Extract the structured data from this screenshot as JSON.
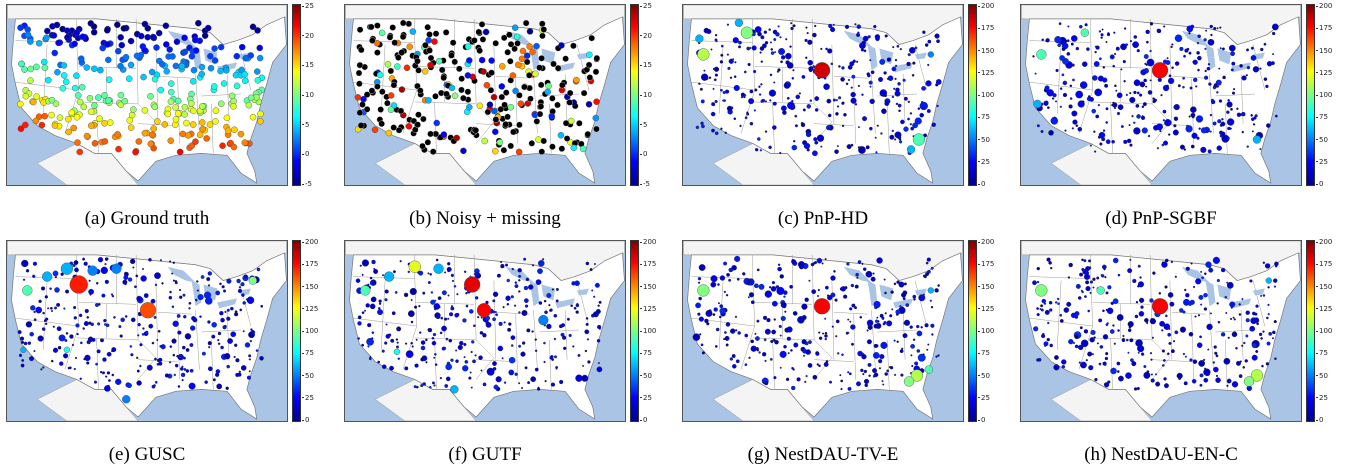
{
  "figure": {
    "panels": [
      {
        "id": "a",
        "caption": "(a) Ground truth",
        "ticks": [
          "25",
          "20",
          "15",
          "10",
          "5",
          "0",
          "-5"
        ],
        "style": "gt"
      },
      {
        "id": "b",
        "caption": "(b) Noisy + missing",
        "ticks": [
          "25",
          "20",
          "15",
          "10",
          "5",
          "0",
          "-5"
        ],
        "style": "noisy"
      },
      {
        "id": "c",
        "caption": "(c) PnP-HD",
        "ticks": [
          "200",
          "175",
          "150",
          "125",
          "100",
          "75",
          "50",
          "25",
          "0"
        ],
        "style": "err1"
      },
      {
        "id": "d",
        "caption": "(d) PnP-SGBF",
        "ticks": [
          "200",
          "175",
          "150",
          "125",
          "100",
          "75",
          "50",
          "25",
          "0"
        ],
        "style": "err2"
      },
      {
        "id": "e",
        "caption": "(e) GUSC",
        "ticks": [
          "200",
          "175",
          "150",
          "125",
          "100",
          "75",
          "50",
          "25",
          "0"
        ],
        "style": "err3"
      },
      {
        "id": "f",
        "caption": "(f) GUTF",
        "ticks": [
          "200",
          "175",
          "150",
          "125",
          "100",
          "75",
          "50",
          "25",
          "0"
        ],
        "style": "err4"
      },
      {
        "id": "g",
        "caption": "(g) NestDAU-TV-E",
        "ticks": [
          "200",
          "175",
          "150",
          "125",
          "100",
          "75",
          "50",
          "25",
          "0"
        ],
        "style": "err5"
      },
      {
        "id": "h",
        "caption": "(h) NestDAU-EN-C",
        "ticks": [
          "200",
          "175",
          "150",
          "125",
          "100",
          "75",
          "50",
          "25",
          "0"
        ],
        "style": "err6"
      }
    ],
    "colors": {
      "ocean": "#a9c4e4",
      "land": "#ffffff",
      "lakes": "#a9c4e4",
      "borders": "#9a9a9a"
    }
  }
}
